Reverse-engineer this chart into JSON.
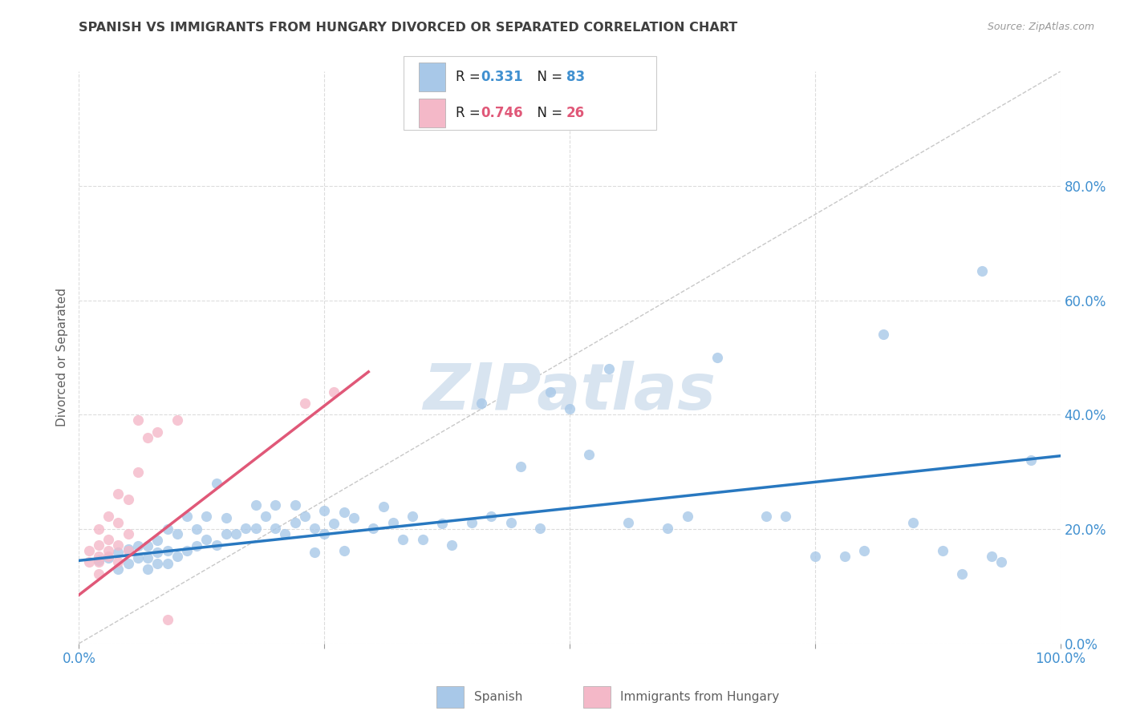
{
  "title": "SPANISH VS IMMIGRANTS FROM HUNGARY DIVORCED OR SEPARATED CORRELATION CHART",
  "source": "Source: ZipAtlas.com",
  "ylabel": "Divorced or Separated",
  "xlim": [
    0,
    1.0
  ],
  "ylim": [
    0,
    1.0
  ],
  "xticks": [
    0.0,
    0.25,
    0.5,
    0.75,
    1.0
  ],
  "yticks": [
    0.0,
    0.2,
    0.4,
    0.6,
    0.8
  ],
  "ytick_labels_right": [
    "0.0%",
    "20.0%",
    "40.0%",
    "60.0%",
    "80.0%"
  ],
  "blue_R": 0.331,
  "blue_N": 83,
  "pink_R": 0.746,
  "pink_N": 26,
  "blue_scatter_color": "#a8c8e8",
  "pink_scatter_color": "#f4b8c8",
  "blue_line_color": "#2878c0",
  "pink_line_color": "#e05878",
  "ref_line_color": "#c8c8c8",
  "watermark_color": "#d8e4f0",
  "background_color": "#ffffff",
  "grid_color": "#dcdcdc",
  "title_color": "#404040",
  "label_color": "#606060",
  "right_tick_color": "#4090d0",
  "legend_text_color": "#202020",
  "legend_value_color": "#4090d0",
  "legend_pink_value_color": "#e05878",
  "blue_scatter_x": [
    0.02,
    0.03,
    0.04,
    0.04,
    0.05,
    0.05,
    0.06,
    0.06,
    0.07,
    0.07,
    0.07,
    0.08,
    0.08,
    0.08,
    0.09,
    0.09,
    0.09,
    0.1,
    0.1,
    0.11,
    0.11,
    0.12,
    0.12,
    0.13,
    0.13,
    0.14,
    0.14,
    0.15,
    0.15,
    0.16,
    0.17,
    0.18,
    0.18,
    0.19,
    0.2,
    0.2,
    0.21,
    0.22,
    0.22,
    0.23,
    0.24,
    0.24,
    0.25,
    0.25,
    0.26,
    0.27,
    0.27,
    0.28,
    0.3,
    0.31,
    0.32,
    0.33,
    0.34,
    0.35,
    0.37,
    0.38,
    0.4,
    0.41,
    0.42,
    0.44,
    0.45,
    0.47,
    0.48,
    0.5,
    0.52,
    0.54,
    0.56,
    0.6,
    0.62,
    0.65,
    0.7,
    0.72,
    0.75,
    0.78,
    0.8,
    0.82,
    0.85,
    0.88,
    0.9,
    0.92,
    0.93,
    0.94,
    0.97
  ],
  "blue_scatter_y": [
    0.145,
    0.15,
    0.13,
    0.16,
    0.14,
    0.165,
    0.15,
    0.17,
    0.13,
    0.15,
    0.17,
    0.14,
    0.16,
    0.18,
    0.14,
    0.162,
    0.2,
    0.152,
    0.192,
    0.162,
    0.222,
    0.17,
    0.2,
    0.182,
    0.222,
    0.172,
    0.28,
    0.192,
    0.22,
    0.192,
    0.202,
    0.202,
    0.242,
    0.222,
    0.202,
    0.242,
    0.192,
    0.212,
    0.242,
    0.222,
    0.16,
    0.202,
    0.192,
    0.232,
    0.21,
    0.162,
    0.23,
    0.22,
    0.202,
    0.24,
    0.212,
    0.182,
    0.222,
    0.182,
    0.21,
    0.172,
    0.212,
    0.42,
    0.222,
    0.212,
    0.31,
    0.202,
    0.44,
    0.41,
    0.33,
    0.48,
    0.212,
    0.202,
    0.222,
    0.5,
    0.222,
    0.222,
    0.152,
    0.152,
    0.162,
    0.54,
    0.212,
    0.162,
    0.122,
    0.652,
    0.152,
    0.142,
    0.32
  ],
  "pink_scatter_x": [
    0.01,
    0.01,
    0.02,
    0.02,
    0.02,
    0.02,
    0.02,
    0.03,
    0.03,
    0.03,
    0.03,
    0.04,
    0.04,
    0.04,
    0.04,
    0.05,
    0.05,
    0.05,
    0.06,
    0.06,
    0.07,
    0.08,
    0.09,
    0.1,
    0.23,
    0.26
  ],
  "pink_scatter_y": [
    0.142,
    0.162,
    0.122,
    0.142,
    0.152,
    0.172,
    0.2,
    0.152,
    0.162,
    0.182,
    0.222,
    0.142,
    0.172,
    0.212,
    0.262,
    0.162,
    0.192,
    0.252,
    0.3,
    0.39,
    0.36,
    0.37,
    0.042,
    0.39,
    0.42,
    0.44
  ],
  "blue_trendline_x": [
    0.0,
    1.0
  ],
  "blue_trendline_y": [
    0.145,
    0.328
  ],
  "pink_trendline_x": [
    0.0,
    0.295
  ],
  "pink_trendline_y": [
    0.085,
    0.475
  ],
  "ref_line_x": [
    0.0,
    1.0
  ],
  "ref_line_y": [
    0.0,
    1.0
  ]
}
